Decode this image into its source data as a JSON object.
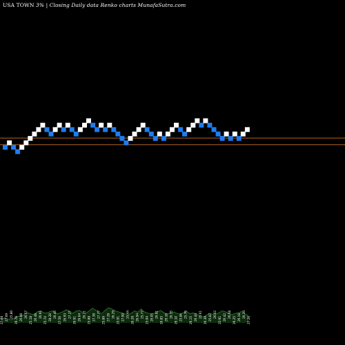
{
  "header": {
    "symbol": "USA TOWN",
    "change": "3%",
    "separator": "|",
    "description": "Closing Daily data  Renko  charts MunafaSutra.com"
  },
  "colors": {
    "background": "#000000",
    "up_brick": "#ffffff",
    "down_brick": "#1e7cf0",
    "reference_line": "#b5651d",
    "volume_fill": "#0d2a0d",
    "volume_line": "#2e7d32",
    "label_text": "#ffffff"
  },
  "chart_data": {
    "type": "renko",
    "reference_lines": [
      1.0,
      -0.5
    ],
    "bricks": [
      {
        "level": -1,
        "dir": "down"
      },
      {
        "level": 0,
        "dir": "up"
      },
      {
        "level": -1,
        "dir": "down"
      },
      {
        "level": -2,
        "dir": "down"
      },
      {
        "level": -1,
        "dir": "up"
      },
      {
        "level": 0,
        "dir": "up"
      },
      {
        "level": 1,
        "dir": "up"
      },
      {
        "level": 2,
        "dir": "up"
      },
      {
        "level": 3,
        "dir": "up"
      },
      {
        "level": 4,
        "dir": "up"
      },
      {
        "level": 3,
        "dir": "down"
      },
      {
        "level": 2,
        "dir": "down"
      },
      {
        "level": 3,
        "dir": "up"
      },
      {
        "level": 4,
        "dir": "up"
      },
      {
        "level": 3,
        "dir": "down"
      },
      {
        "level": 4,
        "dir": "up"
      },
      {
        "level": 3,
        "dir": "down"
      },
      {
        "level": 2,
        "dir": "down"
      },
      {
        "level": 3,
        "dir": "up"
      },
      {
        "level": 4,
        "dir": "up"
      },
      {
        "level": 5,
        "dir": "up"
      },
      {
        "level": 4,
        "dir": "down"
      },
      {
        "level": 3,
        "dir": "down"
      },
      {
        "level": 4,
        "dir": "up"
      },
      {
        "level": 3,
        "dir": "down"
      },
      {
        "level": 4,
        "dir": "up"
      },
      {
        "level": 3,
        "dir": "down"
      },
      {
        "level": 2,
        "dir": "down"
      },
      {
        "level": 1,
        "dir": "down"
      },
      {
        "level": 0,
        "dir": "down"
      },
      {
        "level": 1,
        "dir": "up"
      },
      {
        "level": 2,
        "dir": "up"
      },
      {
        "level": 3,
        "dir": "up"
      },
      {
        "level": 4,
        "dir": "up"
      },
      {
        "level": 3,
        "dir": "down"
      },
      {
        "level": 2,
        "dir": "down"
      },
      {
        "level": 1,
        "dir": "down"
      },
      {
        "level": 2,
        "dir": "up"
      },
      {
        "level": 1,
        "dir": "down"
      },
      {
        "level": 2,
        "dir": "up"
      },
      {
        "level": 3,
        "dir": "up"
      },
      {
        "level": 4,
        "dir": "up"
      },
      {
        "level": 3,
        "dir": "down"
      },
      {
        "level": 2,
        "dir": "down"
      },
      {
        "level": 3,
        "dir": "up"
      },
      {
        "level": 4,
        "dir": "up"
      },
      {
        "level": 5,
        "dir": "up"
      },
      {
        "level": 4,
        "dir": "down"
      },
      {
        "level": 5,
        "dir": "up"
      },
      {
        "level": 4,
        "dir": "down"
      },
      {
        "level": 3,
        "dir": "down"
      },
      {
        "level": 2,
        "dir": "down"
      },
      {
        "level": 1,
        "dir": "down"
      },
      {
        "level": 2,
        "dir": "up"
      },
      {
        "level": 1,
        "dir": "down"
      },
      {
        "level": 2,
        "dir": "up"
      },
      {
        "level": 1,
        "dir": "down"
      },
      {
        "level": 2,
        "dir": "up"
      },
      {
        "level": 3,
        "dir": "up"
      }
    ],
    "volume": [
      8,
      14,
      10,
      9,
      13,
      17,
      19,
      22,
      28,
      25,
      22,
      30,
      33,
      28,
      27,
      31,
      33,
      25,
      27,
      31,
      36,
      30,
      26,
      32,
      34,
      28,
      26,
      33,
      40,
      35,
      28,
      26,
      35,
      41,
      38,
      33,
      30,
      28,
      25,
      22,
      27,
      33,
      29,
      38,
      30,
      27,
      24,
      26,
      30,
      34,
      28,
      24,
      27,
      30,
      26,
      23,
      28,
      31,
      25,
      27,
      24,
      20,
      16,
      21,
      26,
      23,
      24,
      28,
      33,
      30,
      25,
      22,
      26,
      28,
      31,
      24,
      20
    ],
    "price_labels": [
      "27.98",
      "27.69",
      "25.80",
      "26.78",
      "26.08",
      "26.57",
      "25.18",
      "26.48",
      "26.91",
      "25.74",
      "28.28",
      "26.45",
      "27.50",
      "26.93",
      "27.27",
      "26.91",
      "26.64",
      "26.11",
      "25.88",
      "27.38",
      "27.77",
      "25.89",
      "27.28",
      "26.29",
      "25.91",
      "27.00",
      "25.44",
      "26.28",
      "26.94",
      "25.77",
      "25.94",
      "26.05",
      "26.91",
      "26.85",
      "26.18",
      "26.35",
      "26.10",
      "25.84",
      "25.76",
      "26.15",
      "26.44",
      "25.61",
      "26.36",
      "25.87",
      "26.02",
      "25.91",
      "26.42",
      "26.68",
      "26.25",
      "26.18",
      "26.34",
      "27.26"
    ]
  }
}
